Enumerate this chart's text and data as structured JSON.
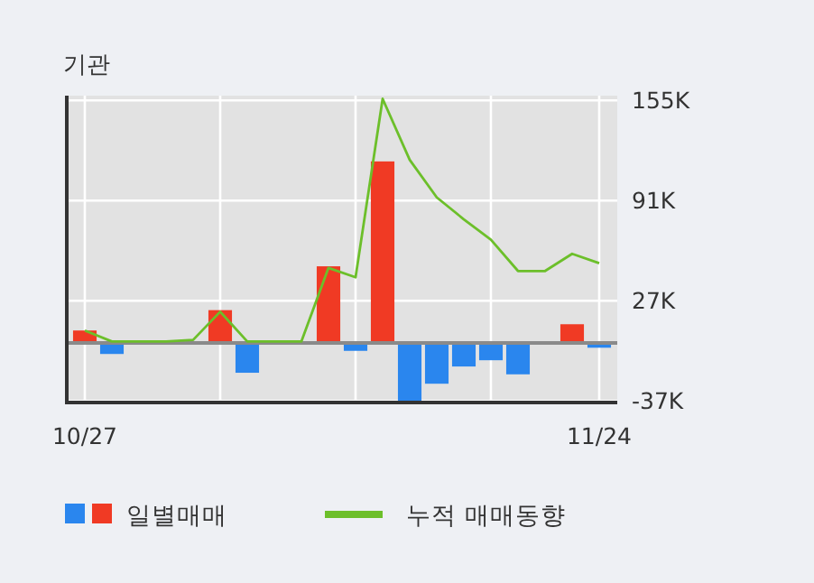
{
  "chart_data": {
    "type": "bar",
    "title": "기관",
    "categories": [
      "10/27",
      null,
      null,
      null,
      null,
      null,
      null,
      null,
      null,
      null,
      null,
      null,
      null,
      null,
      null,
      null,
      null,
      null,
      null,
      "11/24"
    ],
    "series": [
      {
        "name": "일별매매",
        "colors": [
          "#f03a24",
          "#2a86ee",
          "#f03a24",
          "#f03a24",
          "#f03a24",
          "#f03a24",
          "#2a86ee",
          "#f03a24",
          "#f03a24",
          "#f03a24",
          "#2a86ee",
          "#f03a24",
          "#2a86ee",
          "#2a86ee",
          "#2a86ee",
          "#2a86ee",
          "#2a86ee",
          "#f03a24",
          "#f03a24",
          "#2a86ee"
        ],
        "values": [
          8000,
          -7000,
          0,
          0,
          null,
          21000,
          -19000,
          0,
          0,
          49000,
          -5000,
          116000,
          -37000,
          -26000,
          -15000,
          -11000,
          -20000,
          0,
          12000,
          -3000
        ]
      },
      {
        "name": "누적 매매동향",
        "type": "line",
        "color": "#6cbf2a",
        "values": [
          8000,
          1000,
          1000,
          1000,
          2000,
          20000,
          1000,
          1000,
          1000,
          48000,
          42000,
          156000,
          117000,
          93000,
          79000,
          66000,
          46000,
          46000,
          57000,
          51000
        ]
      }
    ],
    "ylim": [
      -38000,
      158000
    ],
    "yticks": [
      {
        "value": 155000,
        "label": "155K"
      },
      {
        "value": 91000,
        "label": "91K"
      },
      {
        "value": 27000,
        "label": "27K"
      },
      {
        "value": -37000,
        "label": "-37K"
      }
    ],
    "ref_lines": [
      {
        "axis": "y",
        "value": 0,
        "color": "#8a8a8a"
      }
    ],
    "grid": true,
    "legend": "bottom"
  }
}
